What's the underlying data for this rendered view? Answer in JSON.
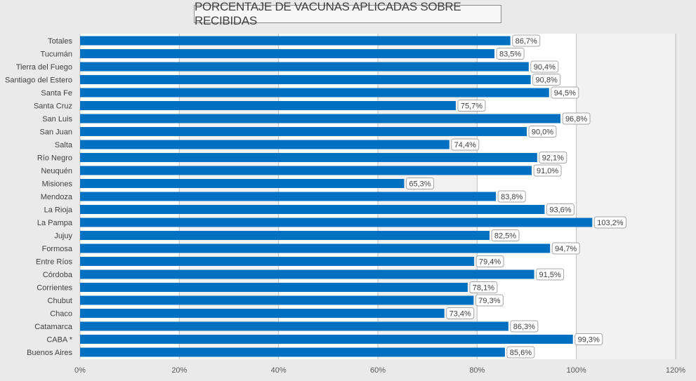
{
  "chart_data": {
    "type": "bar",
    "orientation": "horizontal",
    "title": "PORCENTAJE DE VACUNAS APLICADAS SOBRE RECIBIDAS",
    "categories": [
      "Totales",
      "Tucumán",
      "Tierra del Fuego",
      "Santiago del Estero",
      "Santa Fe",
      "Santa Cruz",
      "San Luis",
      "San Juan",
      "Salta",
      "Río Negro",
      "Neuquén",
      "Misiones",
      "Mendoza",
      "La Rioja",
      "La Pampa",
      "Jujuy",
      "Formosa",
      "Entre Ríos",
      "Córdoba",
      "Corrientes",
      "Chubut",
      "Chaco",
      "Catamarca",
      "CABA *",
      "Buenos Aires"
    ],
    "values": [
      86.7,
      83.5,
      90.4,
      90.8,
      94.5,
      75.7,
      96.8,
      90.0,
      74.4,
      92.1,
      91.0,
      65.3,
      83.8,
      93.6,
      103.2,
      82.5,
      94.7,
      79.4,
      91.5,
      78.1,
      79.3,
      73.4,
      86.3,
      99.3,
      85.6
    ],
    "value_labels": [
      "86,7%",
      "83,5%",
      "90,4%",
      "90,8%",
      "94,5%",
      "75,7%",
      "96,8%",
      "90,0%",
      "74,4%",
      "92,1%",
      "91,0%",
      "65,3%",
      "83,8%",
      "93,6%",
      "103,2%",
      "82,5%",
      "94,7%",
      "79,4%",
      "91,5%",
      "78,1%",
      "79,3%",
      "73,4%",
      "86,3%",
      "99,3%",
      "85,6%"
    ],
    "xlim": [
      0,
      120
    ],
    "x_ticks": [
      0,
      20,
      40,
      60,
      80,
      100,
      120
    ],
    "x_tick_labels": [
      "0%",
      "20%",
      "40%",
      "60%",
      "80%",
      "100%",
      "120%"
    ],
    "xlabel": "",
    "ylabel": "",
    "grid": true,
    "legend": "none",
    "colors": {
      "bar": "#0070c0",
      "plot_band_light": "#ffffff",
      "plot_band_dark": "#f2f2f2",
      "gridline": "#bfbfbf",
      "label_border": "#a6a6a6",
      "label_bg": "#ffffff",
      "background": "#eaeaea"
    }
  }
}
